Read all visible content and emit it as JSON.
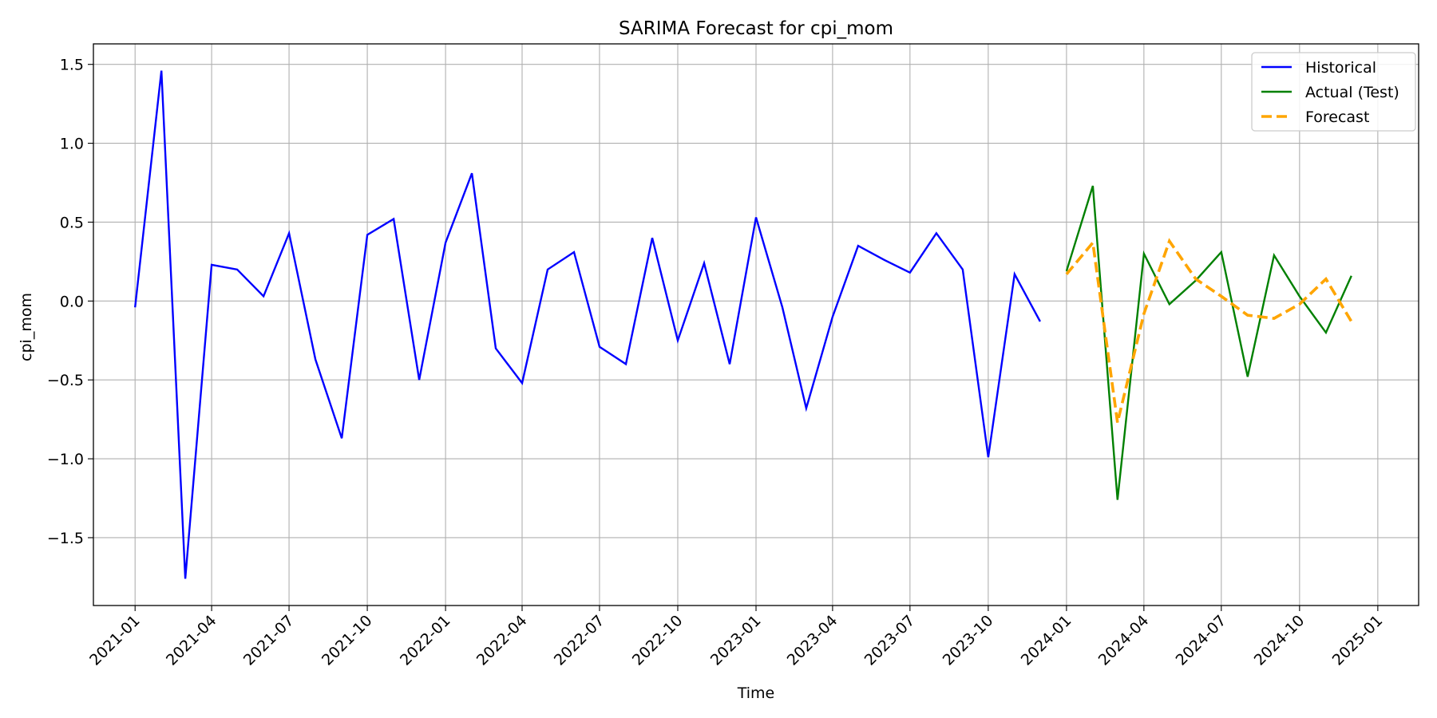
{
  "chart_data": {
    "type": "line",
    "title": "SARIMA Forecast for cpi_mom",
    "xlabel": "Time",
    "ylabel": "cpi_mom",
    "grid": true,
    "legend_position": "top-right",
    "xlim": [
      "2020-11-13",
      "2025-02-18"
    ],
    "ylim": [
      -1.93,
      1.63
    ],
    "x_ticks": [
      "2021-01",
      "2021-04",
      "2021-07",
      "2021-10",
      "2022-01",
      "2022-04",
      "2022-07",
      "2022-10",
      "2023-01",
      "2023-04",
      "2023-07",
      "2023-10",
      "2024-01",
      "2024-04",
      "2024-07",
      "2024-10",
      "2025-01"
    ],
    "y_ticks": [
      1.5,
      1.0,
      0.5,
      0.0,
      -0.5,
      -1.0,
      -1.5
    ],
    "y_tick_labels": [
      "1.5",
      "1.0",
      "0.5",
      "0.0",
      "−0.5",
      "−1.0",
      "−1.5"
    ],
    "series": [
      {
        "name": "Historical",
        "color": "#0000ff",
        "style": "solid",
        "x": [
          "2021-01",
          "2021-02",
          "2021-03",
          "2021-04",
          "2021-05",
          "2021-06",
          "2021-07",
          "2021-08",
          "2021-09",
          "2021-10",
          "2021-11",
          "2021-12",
          "2022-01",
          "2022-02",
          "2022-03",
          "2022-04",
          "2022-05",
          "2022-06",
          "2022-07",
          "2022-08",
          "2022-09",
          "2022-10",
          "2022-11",
          "2022-12",
          "2023-01",
          "2023-02",
          "2023-03",
          "2023-04",
          "2023-05",
          "2023-06",
          "2023-07",
          "2023-08",
          "2023-09",
          "2023-10",
          "2023-11",
          "2023-12"
        ],
        "values": [
          -0.04,
          1.46,
          -1.76,
          0.23,
          0.2,
          0.03,
          0.43,
          -0.37,
          -0.87,
          0.42,
          0.52,
          -0.5,
          0.37,
          0.81,
          -0.3,
          -0.52,
          0.2,
          0.31,
          -0.29,
          -0.4,
          0.4,
          -0.25,
          0.24,
          -0.4,
          0.53,
          -0.04,
          -0.68,
          -0.1,
          0.35,
          0.26,
          0.18,
          0.43,
          0.2,
          -0.99,
          0.17,
          -0.13
        ]
      },
      {
        "name": "Actual (Test)",
        "color": "#008000",
        "style": "solid",
        "x": [
          "2024-01",
          "2024-02",
          "2024-03",
          "2024-04",
          "2024-05",
          "2024-06",
          "2024-07",
          "2024-08",
          "2024-09",
          "2024-10",
          "2024-11",
          "2024-12"
        ],
        "values": [
          0.19,
          0.73,
          -1.26,
          0.3,
          -0.02,
          0.13,
          0.31,
          -0.48,
          0.29,
          0.03,
          -0.2,
          0.16
        ]
      },
      {
        "name": "Forecast",
        "color": "#ffa500",
        "style": "dashed",
        "x": [
          "2024-01",
          "2024-02",
          "2024-03",
          "2024-04",
          "2024-05",
          "2024-06",
          "2024-07",
          "2024-08",
          "2024-09",
          "2024-10",
          "2024-11",
          "2024-12"
        ],
        "values": [
          0.17,
          0.37,
          -0.77,
          -0.08,
          0.38,
          0.14,
          0.03,
          -0.09,
          -0.11,
          -0.02,
          0.14,
          -0.13
        ]
      }
    ]
  }
}
